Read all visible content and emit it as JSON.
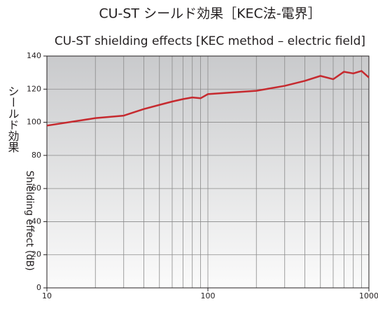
{
  "chart_data": {
    "type": "line",
    "title": "CU-ST シールド効果［KEC法-電界］",
    "subtitle": "CU-ST shielding effects [KEC method – electric field]",
    "ylabel_ja": "シールド効果",
    "ylabel": "Shielding effect (dB)",
    "x": [
      10,
      20,
      30,
      40,
      50,
      60,
      70,
      80,
      90,
      100,
      200,
      300,
      400,
      500,
      600,
      700,
      800,
      900,
      1000
    ],
    "series": [
      {
        "name": "CU-ST",
        "color": "#c62a2f",
        "values": [
          98,
          102.5,
          104,
          108,
          110.5,
          112.5,
          114,
          115,
          114.5,
          117,
          119,
          122,
          125,
          128,
          126,
          130.5,
          129.5,
          131,
          127
        ]
      }
    ],
    "xscale": "log",
    "xlim": [
      10,
      1000
    ],
    "xticks": [
      10,
      100,
      1000
    ],
    "minor_xticks": [
      20,
      30,
      40,
      50,
      60,
      70,
      80,
      90,
      200,
      300,
      400,
      500,
      600,
      700,
      800,
      900
    ],
    "ylim": [
      0,
      140
    ],
    "yticks": [
      0,
      20,
      40,
      60,
      80,
      100,
      120,
      140
    ],
    "grid": true
  }
}
